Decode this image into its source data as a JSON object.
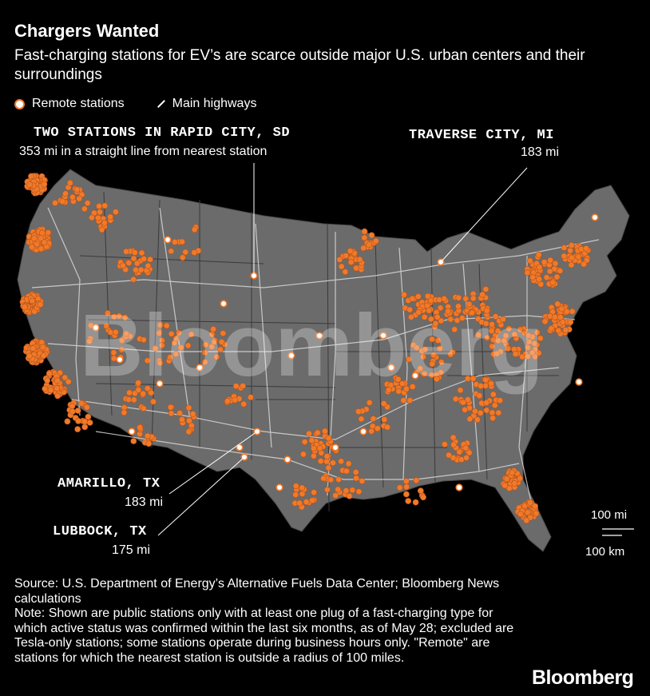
{
  "title": "Chargers Wanted",
  "subtitle": "Fast-charging stations for EV’s are scarce outside major U.S. urban centers and their surroundings",
  "legend": {
    "remote": "Remote stations",
    "highways": "Main highways"
  },
  "callouts": {
    "rapid_city": {
      "title": "TWO STATIONS IN RAPID CITY, SD",
      "sub": "353 mi in a straight line from nearest station"
    },
    "traverse": {
      "title": "TRAVERSE CITY, MI",
      "sub": "183 mi"
    },
    "amarillo": {
      "title": "AMARILLO, TX",
      "sub": "183 mi"
    },
    "lubbock": {
      "title": "LUBBOCK, TX",
      "sub": "175 mi"
    }
  },
  "scale": {
    "mi": "100 mi",
    "km": "100 km"
  },
  "footer": {
    "source": "Source: U.S. Department of Energy’s Alternative Fuels Data Center; Bloomberg News calculations",
    "note": "Note: Shown are public stations only with at least one plug of a fast-charging type for which active status was confirmed within the last six months, as of May 28; excluded are Tesla-only stations; some stations operate during business hours only. \"Remote\" are stations for which the nearest station is outside a radius of 100 miles."
  },
  "watermark": "Bloomberg",
  "brand": "Bloomberg",
  "colors": {
    "station": "#f07a2a",
    "remote_fill": "#ffffff",
    "land": "#6b6b6b",
    "background": "#000000"
  }
}
